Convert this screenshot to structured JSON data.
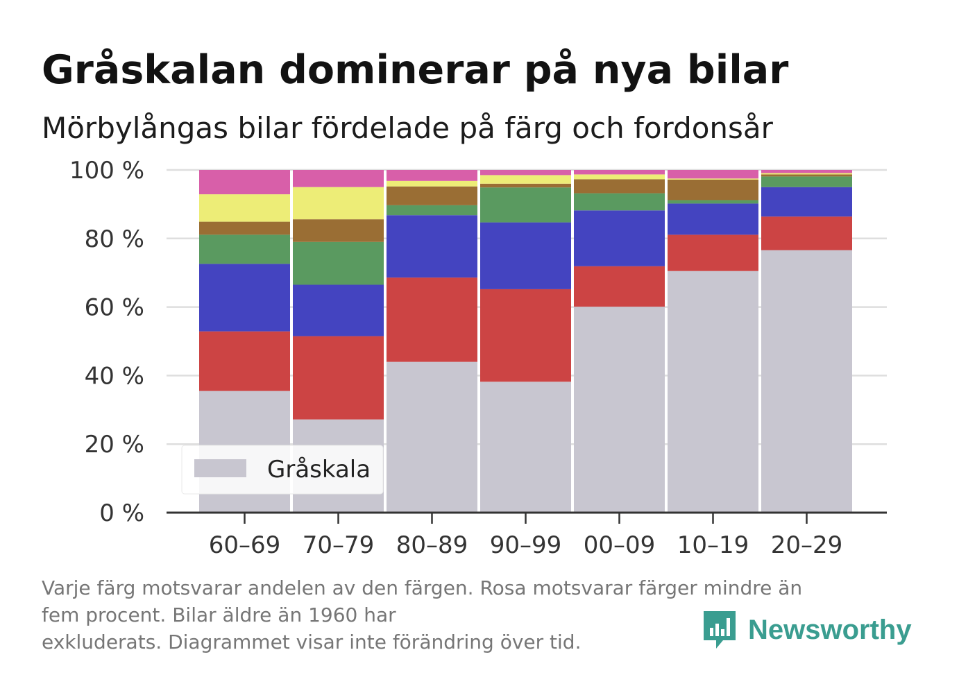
{
  "header": {
    "title": "Gråskalan dominerar på nya bilar",
    "subtitle": "Mörbylångas bilar fördelade på färg och fordonsår"
  },
  "chart_data": {
    "type": "bar",
    "stacked": true,
    "categories": [
      "60–69",
      "70–79",
      "80–89",
      "90–99",
      "00–09",
      "10–19",
      "20–29"
    ],
    "y_ticks": [
      "0 %",
      "20 %",
      "40 %",
      "60 %",
      "80 %",
      "100 %"
    ],
    "ylim": [
      0,
      100
    ],
    "grid": true,
    "legend_position": "bottom-left",
    "series": [
      {
        "name": "Gråskala",
        "color": "#c8c6d0",
        "values": [
          35.5,
          27.2,
          44.0,
          38.2,
          60.1,
          70.5,
          76.6
        ]
      },
      {
        "color": "#cc4444",
        "values": [
          17.4,
          24.3,
          24.6,
          27.0,
          11.8,
          10.6,
          9.8
        ]
      },
      {
        "color": "#4444c0",
        "values": [
          19.7,
          15.0,
          18.2,
          19.5,
          16.3,
          9.1,
          8.6
        ]
      },
      {
        "color": "#5a9a60",
        "values": [
          8.5,
          12.5,
          2.9,
          10.2,
          5.0,
          1.0,
          3.1
        ]
      },
      {
        "color": "#9a6e34",
        "values": [
          3.8,
          6.6,
          5.5,
          1.1,
          4.1,
          6.0,
          0.6
        ]
      },
      {
        "color": "#eded77",
        "values": [
          8.0,
          9.4,
          1.6,
          2.5,
          1.4,
          0.3,
          0.4
        ]
      },
      {
        "color": "#d85fa9",
        "values": [
          7.1,
          5.0,
          3.2,
          1.5,
          1.3,
          2.5,
          0.9
        ]
      }
    ]
  },
  "legend": {
    "label": "Gråskala"
  },
  "footnote": {
    "line1": "Varje färg motsvarar andelen av den färgen. Rosa motsvarar färger mindre än",
    "line2": "fem procent. Bilar äldre än 1960 har",
    "line3": "exkluderats. Diagrammet visar inte förändring över tid."
  },
  "brand": {
    "name": "Newsworthy",
    "icon": "bar-chart-speech-bubble-icon",
    "color": "#3a9d90"
  }
}
